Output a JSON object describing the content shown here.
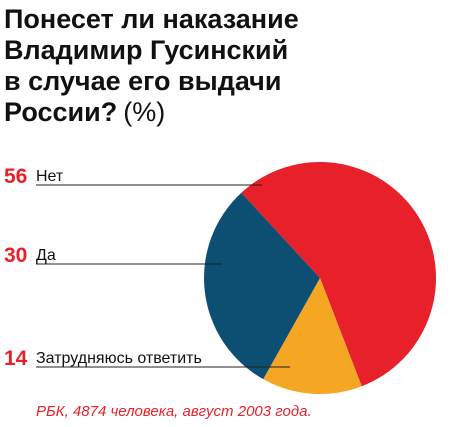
{
  "chart_data": {
    "type": "pie",
    "title_lines": [
      "Понесет ли наказание",
      "Владимир Гусинский",
      "в случае его выдачи",
      "России?"
    ],
    "unit": "(%)",
    "categories": [
      "Нет",
      "Да",
      "Затрудняюсь ответить"
    ],
    "values": [
      56,
      30,
      14
    ],
    "colors": [
      "#e8202a",
      "#0d4f73",
      "#f5a623"
    ],
    "source": "РБК, 4874 человека, август 2003 года."
  }
}
